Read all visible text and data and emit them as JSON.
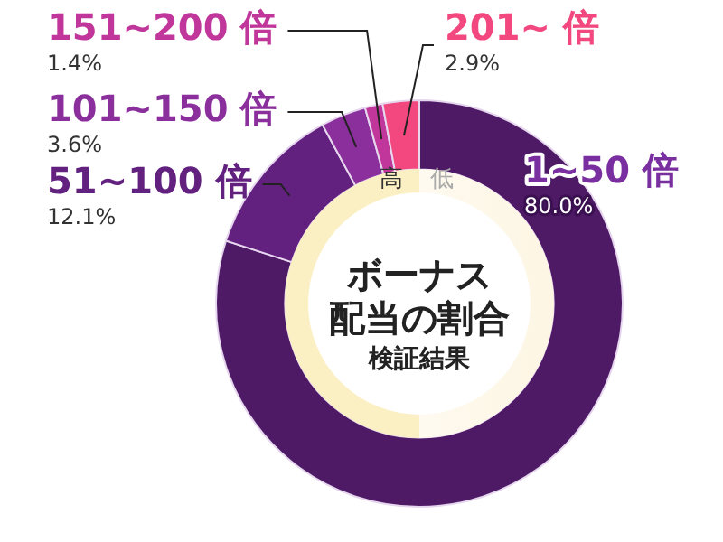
{
  "chart_data": {
    "type": "donut",
    "title": "ボーナス配当の割合",
    "subtitle": "検証結果",
    "categories": [
      "1~50 倍",
      "51~100 倍",
      "101~150 倍",
      "151~200 倍",
      "201~ 倍"
    ],
    "values": [
      80.0,
      12.1,
      3.6,
      1.4,
      2.9
    ],
    "value_labels": [
      "80.0%",
      "12.1%",
      "3.6%",
      "1.4%",
      "2.9%"
    ],
    "colors": [
      "#4e1a66",
      "#62207f",
      "#8a2f9c",
      "#c0369a",
      "#f2487f"
    ],
    "annotations": [
      "高",
      "低"
    ],
    "legend": false
  }
}
